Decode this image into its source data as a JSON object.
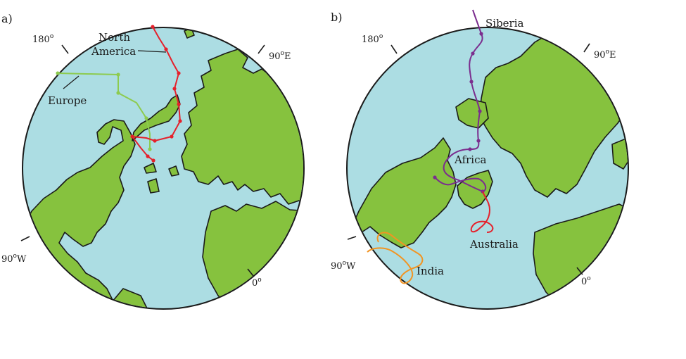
{
  "colors": {
    "ocean": "#acdde3",
    "land": "#86c23e",
    "outline": "#1a1a1a",
    "north_america_path": "#e5202b",
    "europe_path": "#8dcb4f",
    "siberia_path": "#7b2d8e",
    "india_path": "#f29422",
    "australia_path": "#e5202b"
  },
  "panel_a": {
    "label": "a)",
    "deg_180": "180",
    "deg_90e": "90",
    "deg_90e_suffix": "E",
    "deg_90w": "90",
    "deg_90w_suffix": "W",
    "deg_0": "0",
    "degree_symbol": "o",
    "north_america_1": "North",
    "north_america_2": "America",
    "europe": "Europe"
  },
  "panel_b": {
    "label": "b)",
    "deg_180": "180",
    "deg_90e": "90",
    "deg_90e_suffix": "E",
    "deg_90w": "90",
    "deg_90w_suffix": "W",
    "deg_0": "0",
    "degree_symbol": "o",
    "siberia": "Siberia",
    "africa": "Africa",
    "australia": "Australia",
    "india": "India"
  }
}
